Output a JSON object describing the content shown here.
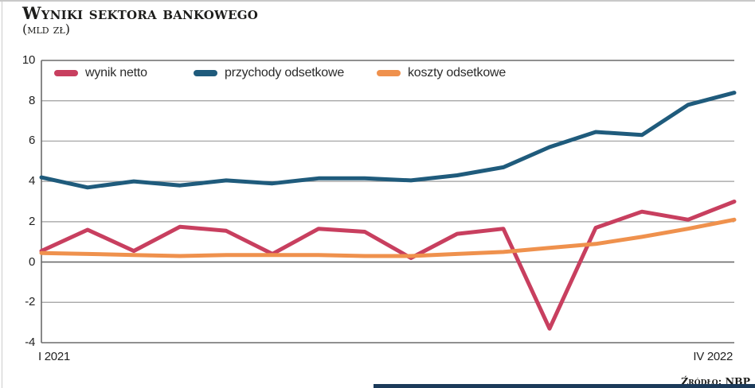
{
  "page": {
    "title": "Wyniki sektora bankowego",
    "subtitle": "(mld zł)",
    "source": "Źródło: NBP"
  },
  "legend": {
    "items": [
      {
        "label": "wynik netto",
        "color": "#c83f5f"
      },
      {
        "label": "przychody odsetkowe",
        "color": "#1f5b7c"
      },
      {
        "label": "koszty odsetkowe",
        "color": "#ef914d"
      }
    ]
  },
  "chart_data": {
    "type": "line",
    "title": "Wyniki sektora bankowego (mld zł)",
    "n_points": 16,
    "x_first_label": "I 2021",
    "x_last_label": "IV 2022",
    "y_ticks": [
      10,
      8,
      6,
      4,
      2,
      0,
      -2,
      -4
    ],
    "ylim": [
      -4,
      10
    ],
    "grid": "horizontal",
    "legend_position": "top-inside",
    "series": [
      {
        "name": "wynik netto",
        "color": "#c83f5f",
        "values": [
          0.55,
          1.6,
          0.55,
          1.75,
          1.55,
          0.4,
          1.65,
          1.5,
          0.2,
          1.4,
          1.65,
          -3.3,
          1.7,
          2.5,
          2.1,
          3.0
        ]
      },
      {
        "name": "przychody odsetkowe",
        "color": "#1f5b7c",
        "values": [
          4.2,
          3.7,
          4.0,
          3.8,
          4.05,
          3.9,
          4.15,
          4.15,
          4.05,
          4.3,
          4.7,
          5.7,
          6.45,
          6.3,
          7.8,
          8.4
        ]
      },
      {
        "name": "koszty odsetkowe",
        "color": "#ef914d",
        "values": [
          0.45,
          0.4,
          0.35,
          0.3,
          0.35,
          0.35,
          0.35,
          0.3,
          0.3,
          0.4,
          0.5,
          0.7,
          0.9,
          1.25,
          1.65,
          2.1
        ]
      }
    ]
  },
  "colors": {
    "gridline": "#9e9e9e",
    "axis": "#6b6b6b",
    "bottom_bar": "#1b3a5a",
    "page_border": "#c9c9c9"
  }
}
